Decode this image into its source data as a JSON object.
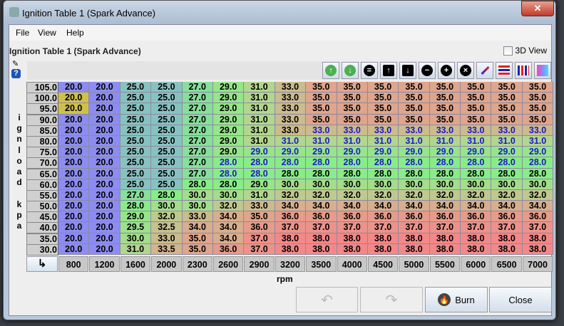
{
  "window": {
    "title": "Ignition Table 1 (Spark Advance)",
    "close": "✕"
  },
  "menu": [
    {
      "label": "File",
      "key": "F"
    },
    {
      "label": "View",
      "key": "V"
    },
    {
      "label": "Help",
      "key": "H"
    }
  ],
  "table_label": "Ignition Table 1 (Spark Advance)",
  "view3d": {
    "label": "3D View",
    "checked": false
  },
  "toolbar": [
    "increase-icon",
    "decrease-icon",
    "set-equal-icon",
    "shift-up-icon",
    "shift-down-icon",
    "subtract-icon",
    "add-icon",
    "multiply-icon",
    "interpolate-icon",
    "horizontal-interpolate-icon",
    "vertical-interpolate-icon",
    "color-scale-icon"
  ],
  "y_axis": {
    "label": "ignload kpa",
    "values": [
      "105.0",
      "100.0",
      "95.0",
      "90.0",
      "85.0",
      "80.0",
      "75.0",
      "70.0",
      "65.0",
      "60.0",
      "55.0",
      "50.0",
      "45.0",
      "40.0",
      "35.0",
      "30.0"
    ]
  },
  "x_axis": {
    "label": "rpm",
    "values": [
      "800",
      "1200",
      "1600",
      "2000",
      "2300",
      "2600",
      "2900",
      "3200",
      "3500",
      "4000",
      "4500",
      "5000",
      "5500",
      "6000",
      "6500",
      "7000"
    ]
  },
  "color_scale": [
    [
      20,
      "#8c8cf2"
    ],
    [
      25,
      "#88c2c0"
    ],
    [
      28,
      "#88ec88"
    ],
    [
      31,
      "#b2d68e"
    ],
    [
      34,
      "#d8ae8e"
    ],
    [
      38,
      "#f48888"
    ]
  ],
  "cells": [
    [
      "20.0",
      "20.0",
      "25.0",
      "25.0",
      "27.0",
      "29.0",
      "31.0",
      "33.0",
      "35.0",
      "35.0",
      "35.0",
      "35.0",
      "35.0",
      "35.0",
      "35.0",
      "35.0"
    ],
    [
      "20.0",
      "20.0",
      "25.0",
      "25.0",
      "27.0",
      "29.0",
      "31.0",
      "33.0",
      "35.0",
      "35.0",
      "35.0",
      "35.0",
      "35.0",
      "35.0",
      "35.0",
      "35.0"
    ],
    [
      "20.0",
      "20.0",
      "25.0",
      "25.0",
      "27.0",
      "29.0",
      "31.0",
      "33.0",
      "35.0",
      "35.0",
      "35.0",
      "35.0",
      "35.0",
      "35.0",
      "35.0",
      "35.0"
    ],
    [
      "20.0",
      "20.0",
      "25.0",
      "25.0",
      "27.0",
      "29.0",
      "31.0",
      "33.0",
      "35.0",
      "35.0",
      "35.0",
      "35.0",
      "35.0",
      "35.0",
      "35.0",
      "35.0"
    ],
    [
      "20.0",
      "20.0",
      "25.0",
      "25.0",
      "27.0",
      "29.0",
      "31.0",
      "33.0",
      "33.0",
      "33.0",
      "33.0",
      "33.0",
      "33.0",
      "33.0",
      "33.0",
      "33.0"
    ],
    [
      "20.0",
      "20.0",
      "25.0",
      "25.0",
      "27.0",
      "29.0",
      "31.0",
      "31.0",
      "31.0",
      "31.0",
      "31.0",
      "31.0",
      "31.0",
      "31.0",
      "31.0",
      "31.0"
    ],
    [
      "20.0",
      "20.0",
      "25.0",
      "25.0",
      "27.0",
      "29.0",
      "29.0",
      "29.0",
      "29.0",
      "29.0",
      "29.0",
      "29.0",
      "29.0",
      "29.0",
      "29.0",
      "29.0"
    ],
    [
      "20.0",
      "20.0",
      "25.0",
      "25.0",
      "27.0",
      "28.0",
      "28.0",
      "28.0",
      "28.0",
      "28.0",
      "28.0",
      "28.0",
      "28.0",
      "28.0",
      "28.0",
      "28.0"
    ],
    [
      "20.0",
      "20.0",
      "25.0",
      "25.0",
      "27.0",
      "28.0",
      "28.0",
      "28.0",
      "28.0",
      "28.0",
      "28.0",
      "28.0",
      "28.0",
      "28.0",
      "28.0",
      "28.0"
    ],
    [
      "20.0",
      "20.0",
      "25.0",
      "25.0",
      "28.0",
      "28.0",
      "29.0",
      "30.0",
      "30.0",
      "30.0",
      "30.0",
      "30.0",
      "30.0",
      "30.0",
      "30.0",
      "30.0"
    ],
    [
      "20.0",
      "20.0",
      "27.0",
      "28.0",
      "30.0",
      "30.0",
      "31.0",
      "32.0",
      "32.0",
      "32.0",
      "32.0",
      "32.0",
      "32.0",
      "32.0",
      "32.0",
      "32.0"
    ],
    [
      "20.0",
      "20.0",
      "28.0",
      "30.0",
      "30.0",
      "32.0",
      "33.0",
      "34.0",
      "34.0",
      "34.0",
      "34.0",
      "34.0",
      "34.0",
      "34.0",
      "34.0",
      "34.0"
    ],
    [
      "20.0",
      "20.0",
      "29.0",
      "32.0",
      "33.0",
      "34.0",
      "35.0",
      "36.0",
      "36.0",
      "36.0",
      "36.0",
      "36.0",
      "36.0",
      "36.0",
      "36.0",
      "36.0"
    ],
    [
      "20.0",
      "20.0",
      "29.5",
      "32.5",
      "34.0",
      "34.0",
      "36.0",
      "37.0",
      "37.0",
      "37.0",
      "37.0",
      "37.0",
      "37.0",
      "37.0",
      "37.0",
      "37.0"
    ],
    [
      "20.0",
      "20.0",
      "30.0",
      "33.0",
      "35.0",
      "34.0",
      "37.0",
      "38.0",
      "38.0",
      "38.0",
      "38.0",
      "38.0",
      "38.0",
      "38.0",
      "38.0",
      "38.0"
    ],
    [
      "20.0",
      "20.0",
      "31.0",
      "33.5",
      "35.0",
      "36.0",
      "37.0",
      "38.0",
      "38.0",
      "38.0",
      "38.0",
      "38.0",
      "38.0",
      "38.0",
      "38.0",
      "38.0"
    ]
  ],
  "modified_cells": [
    [
      4,
      8
    ],
    [
      4,
      9
    ],
    [
      4,
      10
    ],
    [
      4,
      11
    ],
    [
      4,
      12
    ],
    [
      4,
      13
    ],
    [
      4,
      14
    ],
    [
      4,
      15
    ],
    [
      5,
      7
    ],
    [
      5,
      8
    ],
    [
      5,
      9
    ],
    [
      5,
      10
    ],
    [
      5,
      11
    ],
    [
      5,
      12
    ],
    [
      5,
      13
    ],
    [
      5,
      14
    ],
    [
      5,
      15
    ],
    [
      6,
      6
    ],
    [
      6,
      7
    ],
    [
      6,
      8
    ],
    [
      6,
      9
    ],
    [
      6,
      10
    ],
    [
      6,
      11
    ],
    [
      6,
      12
    ],
    [
      6,
      13
    ],
    [
      6,
      14
    ],
    [
      6,
      15
    ],
    [
      7,
      5
    ],
    [
      7,
      6
    ],
    [
      7,
      7
    ],
    [
      7,
      8
    ],
    [
      7,
      9
    ],
    [
      7,
      10
    ],
    [
      7,
      11
    ],
    [
      7,
      12
    ],
    [
      7,
      13
    ],
    [
      7,
      14
    ],
    [
      7,
      15
    ],
    [
      8,
      5
    ],
    [
      8,
      6
    ]
  ],
  "selected_cells": [
    [
      1,
      0
    ],
    [
      2,
      0
    ]
  ],
  "buttons": {
    "undo": "undo-icon",
    "redo": "redo-icon",
    "burn": "Burn",
    "burn_key": "B",
    "close": "Close",
    "close_key": "C"
  }
}
